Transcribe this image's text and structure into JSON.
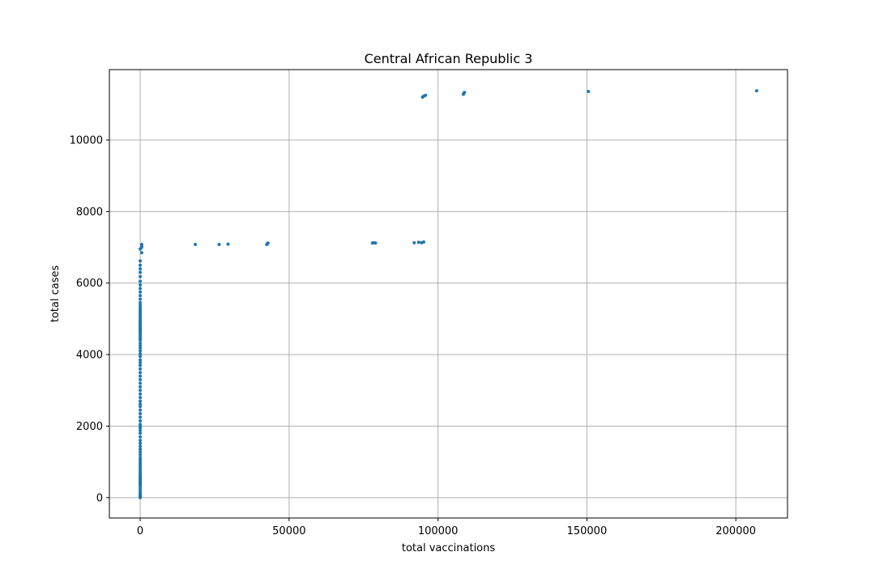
{
  "chart_data": {
    "type": "scatter",
    "title": "Central African Republic 3",
    "xlabel": "total vaccinations",
    "ylabel": "total cases",
    "xlim": [
      -10350,
      217350
    ],
    "ylim": [
      -570,
      11970
    ],
    "xticks": [
      0,
      50000,
      100000,
      150000,
      200000
    ],
    "yticks": [
      0,
      2000,
      4000,
      6000,
      8000,
      10000
    ],
    "grid": true,
    "marker_color": "#1f77b4",
    "series": [
      {
        "points": [
          [
            0,
            0
          ],
          [
            0,
            20
          ],
          [
            0,
            40
          ],
          [
            0,
            60
          ],
          [
            0,
            80
          ],
          [
            0,
            100
          ],
          [
            0,
            120
          ],
          [
            0,
            140
          ],
          [
            0,
            200
          ],
          [
            0,
            260
          ],
          [
            0,
            320
          ],
          [
            0,
            360
          ],
          [
            0,
            400
          ],
          [
            0,
            440
          ],
          [
            0,
            480
          ],
          [
            0,
            520
          ],
          [
            0,
            560
          ],
          [
            0,
            600
          ],
          [
            0,
            650
          ],
          [
            0,
            700
          ],
          [
            0,
            760
          ],
          [
            0,
            820
          ],
          [
            0,
            880
          ],
          [
            0,
            940
          ],
          [
            0,
            1000
          ],
          [
            0,
            1060
          ],
          [
            0,
            1120
          ],
          [
            0,
            1200
          ],
          [
            0,
            1280
          ],
          [
            0,
            1360
          ],
          [
            0,
            1440
          ],
          [
            0,
            1520
          ],
          [
            0,
            1600
          ],
          [
            0,
            1700
          ],
          [
            0,
            1800
          ],
          [
            0,
            1880
          ],
          [
            0,
            1950
          ],
          [
            0,
            2000
          ],
          [
            0,
            2050
          ],
          [
            0,
            2150
          ],
          [
            0,
            2250
          ],
          [
            0,
            2350
          ],
          [
            0,
            2450
          ],
          [
            0,
            2550
          ],
          [
            0,
            2620
          ],
          [
            0,
            2700
          ],
          [
            0,
            2800
          ],
          [
            0,
            2900
          ],
          [
            0,
            3000
          ],
          [
            0,
            3100
          ],
          [
            0,
            3200
          ],
          [
            0,
            3300
          ],
          [
            0,
            3400
          ],
          [
            0,
            3500
          ],
          [
            0,
            3600
          ],
          [
            0,
            3700
          ],
          [
            0,
            3780
          ],
          [
            0,
            3850
          ],
          [
            0,
            3950
          ],
          [
            0,
            4020
          ],
          [
            0,
            4100
          ],
          [
            0,
            4180
          ],
          [
            0,
            4250
          ],
          [
            0,
            4320
          ],
          [
            0,
            4400
          ],
          [
            0,
            4450
          ],
          [
            0,
            4500
          ],
          [
            0,
            4550
          ],
          [
            0,
            4600
          ],
          [
            0,
            4640
          ],
          [
            0,
            4680
          ],
          [
            0,
            4720
          ],
          [
            0,
            4760
          ],
          [
            0,
            4800
          ],
          [
            0,
            4840
          ],
          [
            0,
            4880
          ],
          [
            0,
            4920
          ],
          [
            0,
            4960
          ],
          [
            0,
            5000
          ],
          [
            0,
            5050
          ],
          [
            0,
            5100
          ],
          [
            0,
            5150
          ],
          [
            0,
            5200
          ],
          [
            0,
            5260
          ],
          [
            0,
            5320
          ],
          [
            0,
            5380
          ],
          [
            0,
            5450
          ],
          [
            0,
            5550
          ],
          [
            0,
            5650
          ],
          [
            0,
            5750
          ],
          [
            0,
            5850
          ],
          [
            0,
            5950
          ],
          [
            0,
            6050
          ],
          [
            0,
            6180
          ],
          [
            0,
            6300
          ],
          [
            0,
            6400
          ],
          [
            0,
            6500
          ],
          [
            0,
            6620
          ],
          [
            0,
            6950
          ],
          [
            500,
            7000
          ],
          [
            500,
            7050
          ],
          [
            500,
            7080
          ],
          [
            500,
            6850
          ],
          [
            18500,
            7080
          ],
          [
            26500,
            7080
          ],
          [
            29500,
            7090
          ],
          [
            42500,
            7080
          ],
          [
            42700,
            7100
          ],
          [
            42900,
            7120
          ],
          [
            78000,
            7120
          ],
          [
            78500,
            7130
          ],
          [
            79000,
            7120
          ],
          [
            92000,
            7130
          ],
          [
            93500,
            7140
          ],
          [
            94500,
            7130
          ],
          [
            95200,
            7150
          ],
          [
            94800,
            11200
          ],
          [
            95200,
            11230
          ],
          [
            95800,
            11250
          ],
          [
            108500,
            11280
          ],
          [
            108700,
            11310
          ],
          [
            108900,
            11330
          ],
          [
            150500,
            11360
          ],
          [
            207000,
            11380
          ]
        ]
      }
    ]
  }
}
